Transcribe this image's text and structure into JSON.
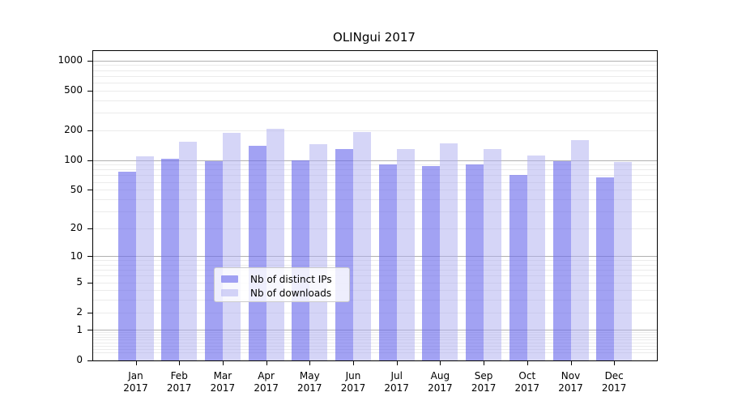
{
  "title": "OLINgui 2017",
  "chart_data": {
    "type": "bar",
    "title": "OLINgui 2017",
    "categories": [
      "Jan 2017",
      "Feb 2017",
      "Mar 2017",
      "Apr 2017",
      "May 2017",
      "Jun 2017",
      "Jul 2017",
      "Aug 2017",
      "Sep 2017",
      "Oct 2017",
      "Nov 2017",
      "Dec 2017"
    ],
    "series": [
      {
        "name": "Nb of distinct IPs",
        "color": "rgba(105,105,235,0.62)",
        "values": [
          77,
          105,
          98,
          140,
          100,
          130,
          92,
          88,
          91,
          71,
          98,
          67
        ]
      },
      {
        "name": "Nb of downloads",
        "color": "rgba(175,175,240,0.52)",
        "values": [
          110,
          155,
          190,
          207,
          145,
          195,
          130,
          150,
          130,
          112,
          160,
          97
        ]
      }
    ],
    "xlabel": "",
    "ylabel": "",
    "yscale": "log1p",
    "yticks": [
      0,
      1,
      2,
      5,
      10,
      20,
      50,
      100,
      200,
      500,
      1000
    ],
    "ylim": [
      0,
      1259
    ],
    "grid": "on",
    "legend_position": "lower center"
  }
}
